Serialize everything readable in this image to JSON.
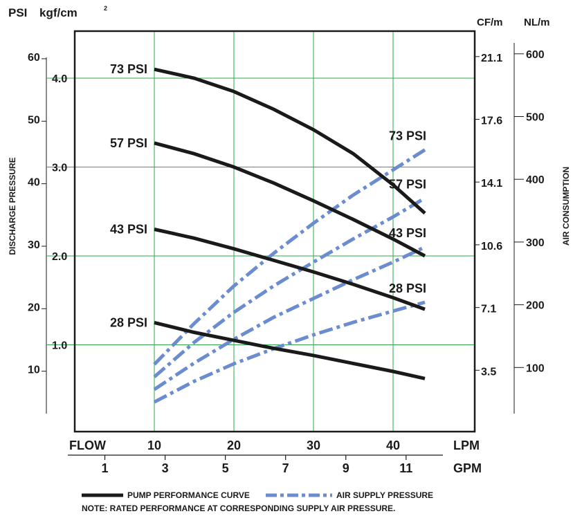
{
  "chart_data": {
    "type": "line",
    "left_axis_units": {
      "psi": "PSI",
      "kgf": "kgf/cm",
      "kgf_sup": "2"
    },
    "right_axis_units": {
      "cfm": "CF/m",
      "nlm": "NL/m"
    },
    "left_axis_label": "DISCHARGE PRESSURE",
    "right_axis_label": "AIR CONSUMPTION",
    "flow_label": "FLOW",
    "lpm_label": "LPM",
    "gpm_label": "GPM",
    "psi_ticks": [
      "60",
      "50",
      "40",
      "30",
      "20",
      "10"
    ],
    "kgf_ticks": [
      "4.0",
      "3.0",
      "2.0",
      "1.0"
    ],
    "cfm_ticks": [
      "21.1",
      "17.6",
      "14.1",
      "10.6",
      "7.1",
      "3.5"
    ],
    "nlm_ticks": [
      "600",
      "500",
      "400",
      "300",
      "200",
      "100"
    ],
    "lpm_ticks": [
      "10",
      "20",
      "30",
      "40"
    ],
    "gpm_ticks": [
      "1",
      "3",
      "5",
      "7",
      "9",
      "11"
    ],
    "xlim_lpm": [
      0,
      50
    ],
    "ylim_kgf": [
      0,
      5.0
    ],
    "ylim_nlm": [
      0,
      600
    ],
    "grid": true,
    "pump_series": [
      {
        "name": "73 PSI",
        "x": [
          10,
          15,
          20,
          25,
          30,
          35,
          40,
          44
        ],
        "y": [
          4.1,
          4.0,
          3.85,
          3.65,
          3.42,
          3.15,
          2.8,
          2.48
        ]
      },
      {
        "name": "57 PSI",
        "x": [
          10,
          15,
          20,
          25,
          30,
          35,
          40,
          44
        ],
        "y": [
          3.27,
          3.15,
          3.0,
          2.82,
          2.62,
          2.41,
          2.19,
          2.0
        ]
      },
      {
        "name": "43 PSI",
        "x": [
          10,
          15,
          20,
          25,
          30,
          35,
          40,
          44
        ],
        "y": [
          2.3,
          2.2,
          2.08,
          1.95,
          1.82,
          1.68,
          1.53,
          1.4
        ]
      },
      {
        "name": "28 PSI",
        "x": [
          10,
          15,
          20,
          25,
          30,
          35,
          40,
          44
        ],
        "y": [
          1.25,
          1.14,
          1.05,
          0.96,
          0.88,
          0.79,
          0.7,
          0.62
        ]
      }
    ],
    "air_series": [
      {
        "name": "73 PSI",
        "x": [
          10,
          15,
          20,
          25,
          30,
          35,
          40,
          44
        ],
        "y_nlm": [
          105,
          170,
          230,
          282,
          330,
          375,
          415,
          447
        ]
      },
      {
        "name": "57 PSI",
        "x": [
          10,
          15,
          20,
          25,
          30,
          35,
          40,
          44
        ],
        "y_nlm": [
          85,
          140,
          188,
          230,
          268,
          305,
          340,
          370
        ]
      },
      {
        "name": "43 PSI",
        "x": [
          10,
          15,
          20,
          25,
          30,
          35,
          40,
          44
        ],
        "y_nlm": [
          65,
          107,
          145,
          180,
          210,
          240,
          268,
          292
        ]
      },
      {
        "name": "28 PSI",
        "x": [
          10,
          15,
          20,
          25,
          30,
          35,
          40,
          44
        ],
        "y_nlm": [
          45,
          78,
          106,
          130,
          152,
          172,
          190,
          204
        ]
      }
    ],
    "colors": {
      "pump": "#1a1a1a",
      "air": "#6b8ccf",
      "grid": "#2ea84a"
    },
    "legend": {
      "pump_label": "PUMP PERFORMANCE CURVE",
      "air_label": "AIR SUPPLY PRESSURE",
      "note": "NOTE: RATED PERFORMANCE AT CORRESPONDING SUPPLY AIR PRESSURE."
    }
  }
}
